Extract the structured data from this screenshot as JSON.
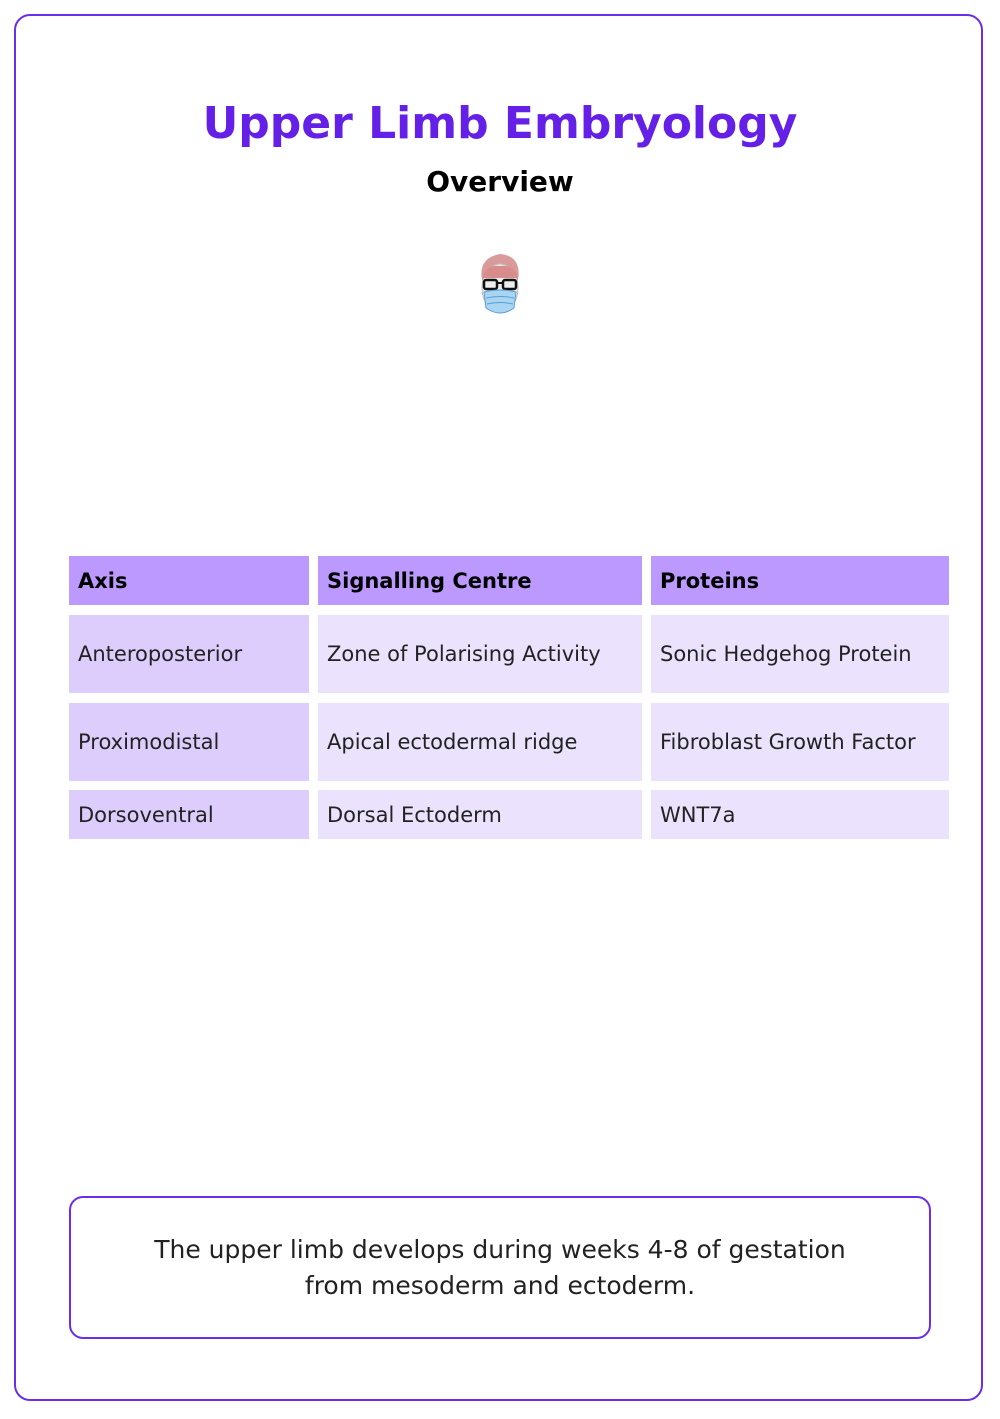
{
  "title": "Upper Limb Embryology",
  "subtitle": "Overview",
  "logo": "masked-doctor-face-with-glasses",
  "colors": {
    "accent": "#6420e6",
    "header_bg": "#bb99ff",
    "first_col_bg": "#ddcdfd",
    "cell_bg": "#ebe2fd"
  },
  "table": {
    "headers": [
      "Axis",
      "Signalling Centre",
      "Proteins"
    ],
    "rows": [
      [
        "Anteroposterior",
        "Zone of Polarising Activity",
        "Sonic Hedgehog Protein"
      ],
      [
        "Proximodistal",
        "Apical ectodermal ridge",
        "Fibroblast Growth Factor"
      ],
      [
        "Dorsoventral",
        "Dorsal Ectoderm",
        "WNT7a"
      ]
    ]
  },
  "note": "The upper limb develops during weeks 4-8 of gestation from mesoderm and ectoderm."
}
